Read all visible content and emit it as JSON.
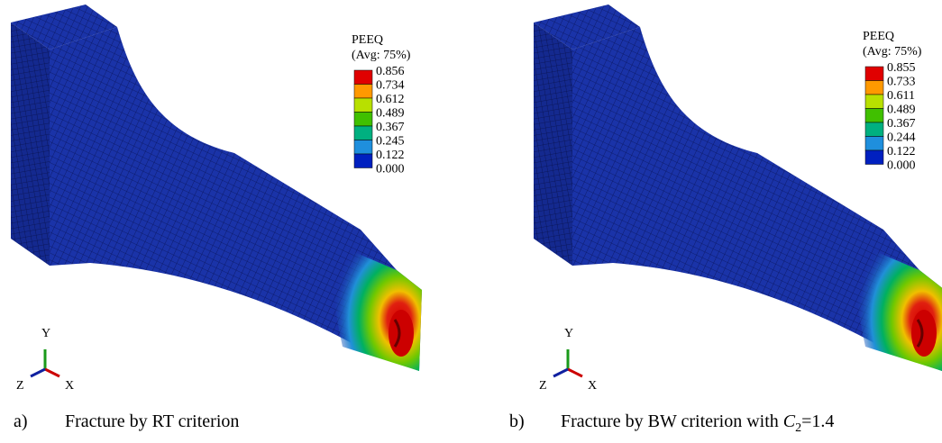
{
  "panels": [
    {
      "legend": {
        "title": [
          "PEEQ",
          "(Avg: 75%)"
        ],
        "labels": [
          "0.856",
          "0.734",
          "0.612",
          "0.489",
          "0.367",
          "0.245",
          "0.122",
          "0.000"
        ]
      },
      "triad": {
        "y": "Y",
        "z": "Z",
        "x": "X"
      },
      "caption": {
        "prefix": "a)",
        "text": "Fracture by RT criterion"
      }
    },
    {
      "legend": {
        "title": [
          "PEEQ",
          "(Avg: 75%)"
        ],
        "labels": [
          "0.855",
          "0.733",
          "0.611",
          "0.489",
          "0.367",
          "0.244",
          "0.122",
          "0.000"
        ]
      },
      "triad": {
        "y": "Y",
        "z": "Z",
        "x": "X"
      },
      "caption": {
        "prefix": "b)",
        "text": "Fracture by BW criterion with ",
        "variable": "C",
        "subscript": "2",
        "suffix": "=1.4"
      }
    }
  ]
}
